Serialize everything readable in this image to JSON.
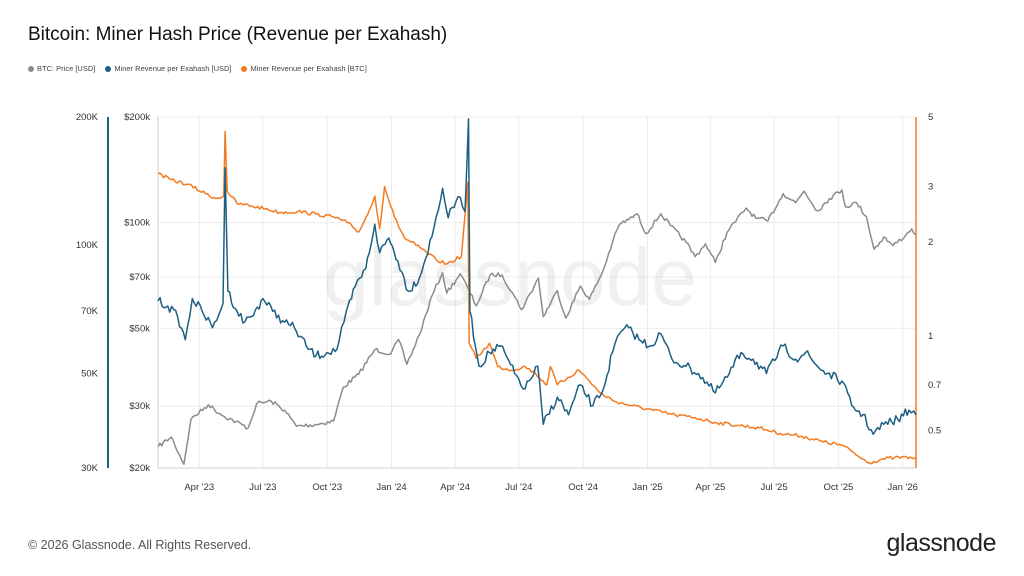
{
  "title": "Bitcoin: Miner Hash Price (Revenue per Exahash)",
  "legend": [
    {
      "label": "BTC: Price [USD]",
      "color": "#8c8c8c"
    },
    {
      "label": "Miner Revenue per Exahash [USD]",
      "color": "#1d5f83"
    },
    {
      "label": "Miner Revenue per Exahash [BTC]",
      "color": "#f47b20"
    }
  ],
  "footer": "© 2026 Glassnode. All Rights Reserved.",
  "logo": "glassnode",
  "watermark": "glassnode",
  "chart_data": {
    "type": "line",
    "title": "Bitcoin: Miner Hash Price (Revenue per Exahash)",
    "x_range": [
      "2023-02-01",
      "2026-01-20"
    ],
    "x_ticks": [
      {
        "label": "Apr '23",
        "date": "2023-04-01"
      },
      {
        "label": "Jul '23",
        "date": "2023-07-01"
      },
      {
        "label": "Oct '23",
        "date": "2023-10-01"
      },
      {
        "label": "Jan '24",
        "date": "2024-01-01"
      },
      {
        "label": "Apr '24",
        "date": "2024-04-01"
      },
      {
        "label": "Jul '24",
        "date": "2024-07-01"
      },
      {
        "label": "Oct '24",
        "date": "2024-10-01"
      },
      {
        "label": "Jan '25",
        "date": "2025-01-01"
      },
      {
        "label": "Apr '25",
        "date": "2025-04-01"
      },
      {
        "label": "Jul '25",
        "date": "2025-07-01"
      },
      {
        "label": "Oct '25",
        "date": "2025-10-01"
      },
      {
        "label": "Jan '26",
        "date": "2026-01-01"
      }
    ],
    "axes": {
      "outer_left": {
        "scale": "log",
        "range": [
          30000,
          200000
        ],
        "ticks": [
          {
            "v": 30000,
            "label": "30K"
          },
          {
            "v": 50000,
            "label": "50K"
          },
          {
            "v": 70000,
            "label": "70K"
          },
          {
            "v": 100000,
            "label": "100K"
          },
          {
            "v": 200000,
            "label": "200K"
          }
        ],
        "color": "#1d5f83"
      },
      "inner_left": {
        "scale": "log",
        "range": [
          20000,
          200000
        ],
        "ticks": [
          {
            "v": 20000,
            "label": "$20k"
          },
          {
            "v": 30000,
            "label": "$30k"
          },
          {
            "v": 50000,
            "label": "$50k"
          },
          {
            "v": 70000,
            "label": "$70k"
          },
          {
            "v": 100000,
            "label": "$100k"
          },
          {
            "v": 200000,
            "label": "$200k"
          }
        ],
        "color": "#1d5f83"
      },
      "right": {
        "scale": "log",
        "range": [
          0.38,
          5
        ],
        "ticks": [
          {
            "v": 0.5,
            "label": "0.5"
          },
          {
            "v": 0.7,
            "label": "0.7"
          },
          {
            "v": 1,
            "label": "1"
          },
          {
            "v": 2,
            "label": "2"
          },
          {
            "v": 3,
            "label": "3"
          },
          {
            "v": 5,
            "label": "5"
          }
        ],
        "color": "#f47b20"
      }
    },
    "grid": true,
    "legend_position": "top-left",
    "series": [
      {
        "name": "BTC: Price [USD]",
        "color": "#8c8c8c",
        "axis": "inner_left",
        "points": [
          [
            "2023-02-01",
            23000
          ],
          [
            "2023-02-20",
            24500
          ],
          [
            "2023-03-10",
            20500
          ],
          [
            "2023-03-20",
            27500
          ],
          [
            "2023-04-14",
            30300
          ],
          [
            "2023-05-01",
            28500
          ],
          [
            "2023-06-10",
            26000
          ],
          [
            "2023-06-22",
            30500
          ],
          [
            "2023-07-13",
            31000
          ],
          [
            "2023-08-01",
            29200
          ],
          [
            "2023-08-18",
            26300
          ],
          [
            "2023-09-15",
            26600
          ],
          [
            "2023-10-10",
            27200
          ],
          [
            "2023-10-24",
            34000
          ],
          [
            "2023-11-15",
            37000
          ],
          [
            "2023-12-08",
            43500
          ],
          [
            "2023-12-31",
            42300
          ],
          [
            "2024-01-11",
            46500
          ],
          [
            "2024-01-23",
            39500
          ],
          [
            "2024-02-10",
            48000
          ],
          [
            "2024-02-28",
            62000
          ],
          [
            "2024-03-14",
            72000
          ],
          [
            "2024-03-20",
            63000
          ],
          [
            "2024-04-08",
            71500
          ],
          [
            "2024-04-20",
            64500
          ],
          [
            "2024-05-01",
            58000
          ],
          [
            "2024-05-21",
            71000
          ],
          [
            "2024-06-07",
            71000
          ],
          [
            "2024-06-25",
            61500
          ],
          [
            "2024-07-05",
            56500
          ],
          [
            "2024-07-29",
            69500
          ],
          [
            "2024-08-05",
            54000
          ],
          [
            "2024-08-25",
            64000
          ],
          [
            "2024-09-06",
            53500
          ],
          [
            "2024-09-27",
            66000
          ],
          [
            "2024-10-10",
            60500
          ],
          [
            "2024-10-29",
            72500
          ],
          [
            "2024-11-12",
            88000
          ],
          [
            "2024-11-22",
            99000
          ],
          [
            "2024-12-05",
            102000
          ],
          [
            "2024-12-17",
            106000
          ],
          [
            "2024-12-30",
            93000
          ],
          [
            "2025-01-20",
            106000
          ],
          [
            "2025-02-03",
            98000
          ],
          [
            "2025-02-25",
            88000
          ],
          [
            "2025-03-10",
            80000
          ],
          [
            "2025-03-25",
            87000
          ],
          [
            "2025-04-08",
            77000
          ],
          [
            "2025-04-25",
            94000
          ],
          [
            "2025-05-22",
            110000
          ],
          [
            "2025-06-05",
            103000
          ],
          [
            "2025-06-22",
            101000
          ],
          [
            "2025-07-14",
            121000
          ],
          [
            "2025-08-01",
            114000
          ],
          [
            "2025-08-13",
            123000
          ],
          [
            "2025-09-01",
            108000
          ],
          [
            "2025-09-18",
            117000
          ],
          [
            "2025-10-06",
            124000
          ],
          [
            "2025-10-11",
            111000
          ],
          [
            "2025-10-27",
            114000
          ],
          [
            "2025-11-10",
            104000
          ],
          [
            "2025-11-21",
            84000
          ],
          [
            "2025-12-05",
            91000
          ],
          [
            "2025-12-18",
            86000
          ],
          [
            "2026-01-05",
            92000
          ],
          [
            "2026-01-14",
            96000
          ],
          [
            "2026-01-20",
            92500
          ]
        ]
      },
      {
        "name": "Miner Revenue per Exahash [USD]",
        "color": "#1d5f83",
        "axis": "outer_left",
        "points": [
          [
            "2023-02-01",
            74000
          ],
          [
            "2023-02-15",
            72000
          ],
          [
            "2023-03-01",
            68000
          ],
          [
            "2023-03-12",
            60000
          ],
          [
            "2023-03-22",
            75000
          ],
          [
            "2023-04-05",
            70000
          ],
          [
            "2023-04-20",
            64000
          ],
          [
            "2023-05-05",
            73000
          ],
          [
            "2023-05-08",
            152000
          ],
          [
            "2023-05-12",
            78000
          ],
          [
            "2023-05-25",
            70000
          ],
          [
            "2023-06-05",
            66000
          ],
          [
            "2023-06-15",
            68000
          ],
          [
            "2023-07-01",
            75000
          ],
          [
            "2023-07-15",
            70000
          ],
          [
            "2023-08-01",
            66000
          ],
          [
            "2023-08-15",
            64000
          ],
          [
            "2023-09-01",
            58000
          ],
          [
            "2023-09-15",
            55000
          ],
          [
            "2023-10-01",
            56000
          ],
          [
            "2023-10-15",
            57000
          ],
          [
            "2023-10-25",
            66000
          ],
          [
            "2023-11-10",
            80000
          ],
          [
            "2023-11-25",
            88000
          ],
          [
            "2023-12-08",
            112000
          ],
          [
            "2023-12-15",
            96000
          ],
          [
            "2023-12-28",
            104000
          ],
          [
            "2024-01-10",
            92000
          ],
          [
            "2024-01-25",
            78000
          ],
          [
            "2024-02-10",
            84000
          ],
          [
            "2024-02-28",
            105000
          ],
          [
            "2024-03-14",
            136000
          ],
          [
            "2024-03-22",
            116000
          ],
          [
            "2024-04-05",
            130000
          ],
          [
            "2024-04-15",
            120000
          ],
          [
            "2024-04-20",
            198000
          ],
          [
            "2024-04-22",
            70000
          ],
          [
            "2024-05-05",
            52000
          ],
          [
            "2024-05-20",
            56000
          ],
          [
            "2024-06-05",
            58000
          ],
          [
            "2024-06-25",
            50000
          ],
          [
            "2024-07-10",
            46000
          ],
          [
            "2024-07-28",
            52000
          ],
          [
            "2024-08-05",
            38000
          ],
          [
            "2024-08-25",
            44000
          ],
          [
            "2024-09-10",
            40000
          ],
          [
            "2024-09-27",
            47000
          ],
          [
            "2024-10-15",
            42000
          ],
          [
            "2024-10-30",
            46000
          ],
          [
            "2024-11-12",
            56000
          ],
          [
            "2024-11-22",
            62000
          ],
          [
            "2024-12-05",
            64000
          ],
          [
            "2024-12-20",
            60000
          ],
          [
            "2025-01-05",
            58000
          ],
          [
            "2025-01-20",
            62000
          ],
          [
            "2025-02-05",
            54000
          ],
          [
            "2025-02-25",
            52000
          ],
          [
            "2025-03-15",
            50000
          ],
          [
            "2025-04-08",
            45000
          ],
          [
            "2025-04-25",
            49000
          ],
          [
            "2025-05-15",
            56000
          ],
          [
            "2025-06-01",
            54000
          ],
          [
            "2025-06-20",
            50000
          ],
          [
            "2025-07-14",
            58000
          ],
          [
            "2025-08-01",
            54000
          ],
          [
            "2025-08-15",
            56000
          ],
          [
            "2025-09-01",
            52000
          ],
          [
            "2025-09-15",
            50000
          ],
          [
            "2025-10-06",
            48000
          ],
          [
            "2025-10-20",
            42000
          ],
          [
            "2025-11-05",
            40000
          ],
          [
            "2025-11-20",
            36000
          ],
          [
            "2025-12-05",
            38000
          ],
          [
            "2025-12-25",
            39000
          ],
          [
            "2026-01-10",
            41000
          ],
          [
            "2026-01-20",
            40000
          ]
        ]
      },
      {
        "name": "Miner Revenue per Exahash [BTC]",
        "color": "#f47b20",
        "axis": "right",
        "points": [
          [
            "2023-02-01",
            3.3
          ],
          [
            "2023-02-20",
            3.15
          ],
          [
            "2023-03-15",
            3.05
          ],
          [
            "2023-04-10",
            2.85
          ],
          [
            "2023-04-25",
            2.75
          ],
          [
            "2023-05-06",
            2.8
          ],
          [
            "2023-05-08",
            4.5
          ],
          [
            "2023-05-11",
            2.9
          ],
          [
            "2023-05-25",
            2.65
          ],
          [
            "2023-06-15",
            2.6
          ],
          [
            "2023-07-05",
            2.55
          ],
          [
            "2023-07-25",
            2.48
          ],
          [
            "2023-08-20",
            2.5
          ],
          [
            "2023-09-15",
            2.45
          ],
          [
            "2023-10-10",
            2.4
          ],
          [
            "2023-10-30",
            2.3
          ],
          [
            "2023-11-15",
            2.15
          ],
          [
            "2023-11-28",
            2.45
          ],
          [
            "2023-12-08",
            2.8
          ],
          [
            "2023-12-15",
            2.2
          ],
          [
            "2023-12-22",
            3.0
          ],
          [
            "2024-01-05",
            2.4
          ],
          [
            "2024-01-20",
            2.05
          ],
          [
            "2024-02-05",
            1.95
          ],
          [
            "2024-02-20",
            1.85
          ],
          [
            "2024-03-05",
            1.75
          ],
          [
            "2024-03-20",
            1.7
          ],
          [
            "2024-04-10",
            1.8
          ],
          [
            "2024-04-19",
            3.1
          ],
          [
            "2024-04-21",
            0.95
          ],
          [
            "2024-05-01",
            0.85
          ],
          [
            "2024-05-20",
            0.95
          ],
          [
            "2024-06-01",
            0.8
          ],
          [
            "2024-06-20",
            0.78
          ],
          [
            "2024-07-10",
            0.8
          ],
          [
            "2024-07-25",
            0.76
          ],
          [
            "2024-08-10",
            0.7
          ],
          [
            "2024-08-15",
            0.8
          ],
          [
            "2024-08-25",
            0.7
          ],
          [
            "2024-09-10",
            0.74
          ],
          [
            "2024-09-25",
            0.78
          ],
          [
            "2024-10-10",
            0.72
          ],
          [
            "2024-10-25",
            0.66
          ],
          [
            "2024-11-15",
            0.62
          ],
          [
            "2024-12-10",
            0.6
          ],
          [
            "2025-01-10",
            0.58
          ],
          [
            "2025-02-10",
            0.56
          ],
          [
            "2025-03-10",
            0.55
          ],
          [
            "2025-04-10",
            0.53
          ],
          [
            "2025-05-10",
            0.52
          ],
          [
            "2025-06-10",
            0.51
          ],
          [
            "2025-07-10",
            0.49
          ],
          [
            "2025-08-10",
            0.48
          ],
          [
            "2025-09-10",
            0.46
          ],
          [
            "2025-10-05",
            0.45
          ],
          [
            "2025-10-20",
            0.43
          ],
          [
            "2025-11-01",
            0.41
          ],
          [
            "2025-11-15",
            0.395
          ],
          [
            "2025-12-01",
            0.405
          ],
          [
            "2025-12-20",
            0.41
          ],
          [
            "2026-01-20",
            0.41
          ]
        ]
      }
    ]
  }
}
